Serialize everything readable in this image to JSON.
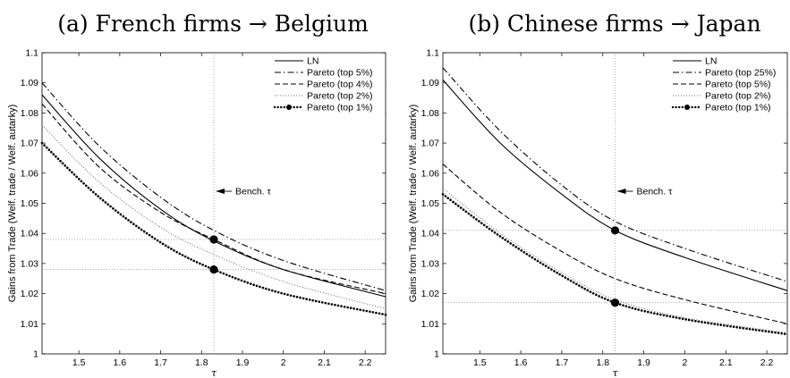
{
  "chart_data": [
    {
      "type": "line",
      "title": "(a) French firms → Belgium",
      "xlabel": "τ",
      "ylabel": "Gains from Trade (Welf. trade / Welf. autarky)",
      "xlim": [
        1.41,
        2.25
      ],
      "ylim": [
        1.0,
        1.1
      ],
      "xticks": [
        "1.5",
        "1.6",
        "1.7",
        "1.8",
        "1.9",
        "2",
        "2.1",
        "2.2"
      ],
      "yticks": [
        "1",
        "1.01",
        "1.02",
        "1.03",
        "1.04",
        "1.05",
        "1.06",
        "1.07",
        "1.08",
        "1.09",
        "1.1"
      ],
      "legend_position": "top-right",
      "annotation": {
        "text": "Bench. τ",
        "x": 1.83,
        "y": 1.054
      },
      "benchmark_x": 1.83,
      "reference_y": [
        1.038,
        1.028
      ],
      "series": [
        {
          "name": "LN",
          "style": "solid",
          "x": [
            1.41,
            1.55,
            1.7,
            1.83,
            2.0,
            2.25
          ],
          "values": [
            1.086,
            1.065,
            1.048,
            1.0375,
            1.028,
            1.019
          ]
        },
        {
          "name": "Pareto (top 5%)",
          "style": "dashdot",
          "x": [
            1.41,
            1.55,
            1.7,
            1.83,
            2.0,
            2.25
          ],
          "values": [
            1.09,
            1.069,
            1.052,
            1.041,
            1.031,
            1.021
          ]
        },
        {
          "name": "Pareto (top 4%)",
          "style": "dashed",
          "x": [
            1.41,
            1.55,
            1.7,
            1.83,
            2.0,
            2.25
          ],
          "values": [
            1.083,
            1.062,
            1.047,
            1.038,
            1.028,
            1.02
          ]
        },
        {
          "name": "Pareto (top 2%)",
          "style": "dotted",
          "x": [
            1.41,
            1.55,
            1.7,
            1.83,
            2.0,
            2.25
          ],
          "values": [
            1.076,
            1.057,
            1.042,
            1.033,
            1.024,
            1.015
          ]
        },
        {
          "name": "Pareto (top 1%)",
          "style": "dotted-bold",
          "x": [
            1.41,
            1.55,
            1.7,
            1.83,
            2.0,
            2.25
          ],
          "values": [
            1.07,
            1.052,
            1.037,
            1.028,
            1.02,
            1.013
          ]
        }
      ],
      "markers": [
        {
          "x": 1.83,
          "y": 1.038
        },
        {
          "x": 1.83,
          "y": 1.028
        }
      ]
    },
    {
      "type": "line",
      "title": "(b) Chinese firms → Japan",
      "xlabel": "τ",
      "ylabel": "Gains from Trade (Welf. trade / Welf. autarky)",
      "xlim": [
        1.41,
        2.25
      ],
      "ylim": [
        1.0,
        1.1
      ],
      "xticks": [
        "1.5",
        "1.6",
        "1.7",
        "1.8",
        "1.9",
        "2",
        "2.1",
        "2.2"
      ],
      "yticks": [
        "1",
        "1.01",
        "1.02",
        "1.03",
        "1.04",
        "1.05",
        "1.06",
        "1.07",
        "1.08",
        "1.09",
        "1.1"
      ],
      "legend_position": "top-right",
      "annotation": {
        "text": "Bench. τ",
        "x": 1.83,
        "y": 1.054
      },
      "benchmark_x": 1.83,
      "reference_y": [
        1.041,
        1.017
      ],
      "series": [
        {
          "name": "LN",
          "style": "solid",
          "x": [
            1.41,
            1.55,
            1.7,
            1.83,
            2.0,
            2.25
          ],
          "values": [
            1.091,
            1.07,
            1.053,
            1.041,
            1.032,
            1.021
          ]
        },
        {
          "name": "Pareto (top 25%)",
          "style": "dashdot",
          "x": [
            1.41,
            1.55,
            1.7,
            1.83,
            2.0,
            2.25
          ],
          "values": [
            1.095,
            1.074,
            1.056,
            1.044,
            1.035,
            1.024
          ]
        },
        {
          "name": "Pareto (top 5%)",
          "style": "dashed",
          "x": [
            1.41,
            1.55,
            1.7,
            1.83,
            2.0,
            2.25
          ],
          "values": [
            1.063,
            1.047,
            1.034,
            1.025,
            1.018,
            1.01
          ]
        },
        {
          "name": "Pareto (top 2%)",
          "style": "dotted",
          "x": [
            1.41,
            1.55,
            1.7,
            1.83,
            2.0,
            2.25
          ],
          "values": [
            1.055,
            1.04,
            1.027,
            1.018,
            1.012,
            1.007
          ]
        },
        {
          "name": "Pareto (top 1%)",
          "style": "dotted-bold",
          "x": [
            1.41,
            1.55,
            1.7,
            1.83,
            2.0,
            2.25
          ],
          "values": [
            1.053,
            1.039,
            1.026,
            1.017,
            1.0115,
            1.0065
          ]
        }
      ],
      "markers": [
        {
          "x": 1.83,
          "y": 1.041
        },
        {
          "x": 1.83,
          "y": 1.017
        }
      ]
    }
  ]
}
